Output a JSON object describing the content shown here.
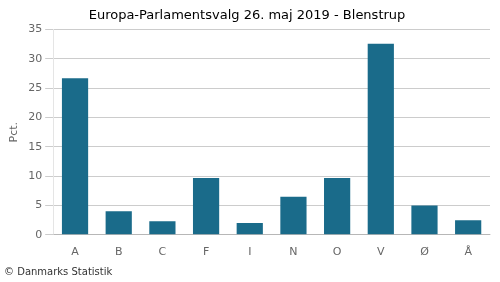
{
  "chart_data": {
    "type": "bar",
    "title": "Europa-Parlamentsvalg 26. maj 2019 - Blenstrup",
    "categories": [
      "A",
      "B",
      "C",
      "F",
      "I",
      "N",
      "O",
      "V",
      "Ø",
      "Å"
    ],
    "values": [
      26.7,
      4.0,
      2.3,
      9.7,
      2.0,
      6.5,
      9.7,
      32.6,
      5.0,
      2.5
    ],
    "color": "#1a6b8a",
    "ylabel": "Pct.",
    "footer": "© Danmarks Statistik",
    "ylim": [
      0,
      35
    ],
    "yticks": [
      0,
      5,
      10,
      15,
      20,
      25,
      30,
      35
    ],
    "grid": true
  }
}
